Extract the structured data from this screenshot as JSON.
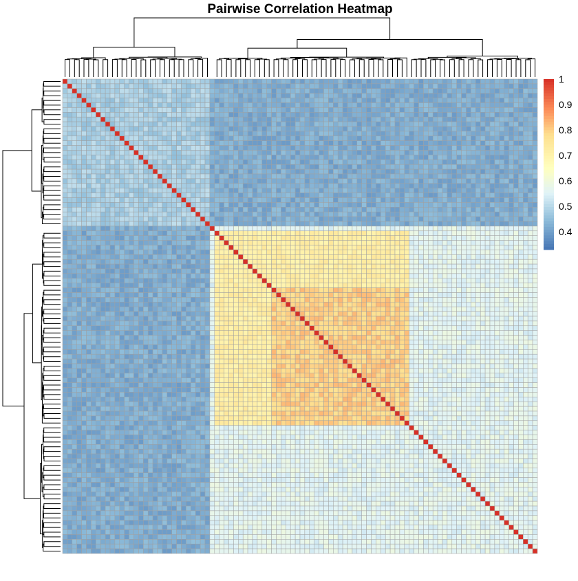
{
  "chart_data": {
    "type": "heatmap",
    "title": "Pairwise Correlation Heatmap",
    "matrix_size": 100,
    "cluster_blocks": [
      {
        "start": 0,
        "end": 31
      },
      {
        "start": 32,
        "end": 100
      }
    ],
    "sub_clusters": [
      {
        "start": 0,
        "end": 10
      },
      {
        "start": 10,
        "end": 31
      },
      {
        "start": 32,
        "end": 44
      },
      {
        "start": 44,
        "end": 73
      },
      {
        "start": 73,
        "end": 100
      }
    ],
    "block_correlations": {
      "within_first_cluster": 0.48,
      "between_first_and_second": 0.42,
      "within_second_cluster": 0.56,
      "within_middle_group": 0.72,
      "core_of_middle_group": 0.8,
      "diagonal": 1.0
    },
    "core_block": {
      "start": 44,
      "end": 73
    },
    "middle_block": {
      "start": 32,
      "end": 73
    },
    "color_scale": {
      "min": 0.33,
      "max": 1.0,
      "stops": [
        {
          "value": 0.33,
          "color": "#4575b4"
        },
        {
          "value": 0.45,
          "color": "#91bfdb"
        },
        {
          "value": 0.55,
          "color": "#e0f3f8"
        },
        {
          "value": 0.65,
          "color": "#ffffbf"
        },
        {
          "value": 0.78,
          "color": "#fee090"
        },
        {
          "value": 0.88,
          "color": "#fc8d59"
        },
        {
          "value": 1.0,
          "color": "#d73027"
        }
      ]
    },
    "legend": {
      "position": "right",
      "ticks": [
        "1",
        "0.9",
        "0.8",
        "0.7",
        "0.6",
        "0.5",
        "0.4"
      ],
      "tick_values": [
        1.0,
        0.9,
        0.8,
        0.7,
        0.6,
        0.5,
        0.4
      ]
    },
    "grid": true,
    "cell_border_color": "#a0a0a0",
    "dendrograms": [
      "top",
      "left"
    ]
  }
}
